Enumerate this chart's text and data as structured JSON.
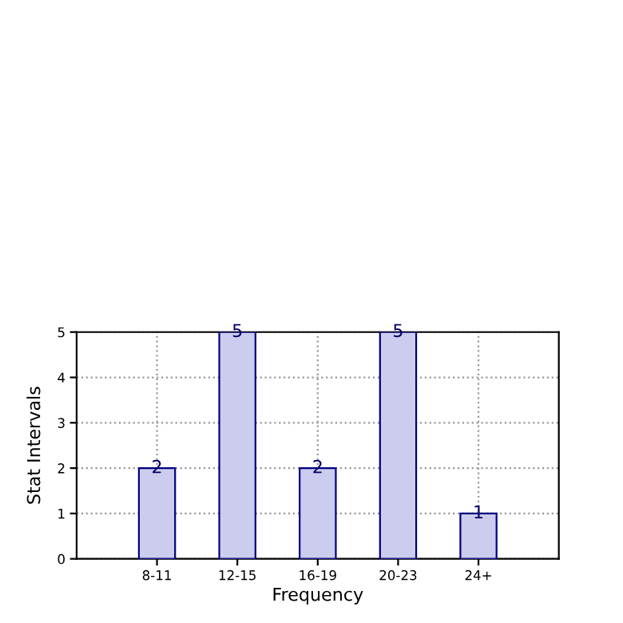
{
  "chart_data": {
    "type": "bar",
    "xlabel": "Frequency",
    "ylabel": "Stat Intervals",
    "categories": [
      "8-11",
      "12-15",
      "16-19",
      "20-23",
      "24+"
    ],
    "values": [
      2,
      5,
      2,
      5,
      1
    ],
    "color": "#ccccee",
    "ylim": [
      0,
      5
    ],
    "yticks": [
      0,
      1,
      2,
      3,
      4,
      5
    ],
    "grid": true,
    "data_labels": true
  }
}
